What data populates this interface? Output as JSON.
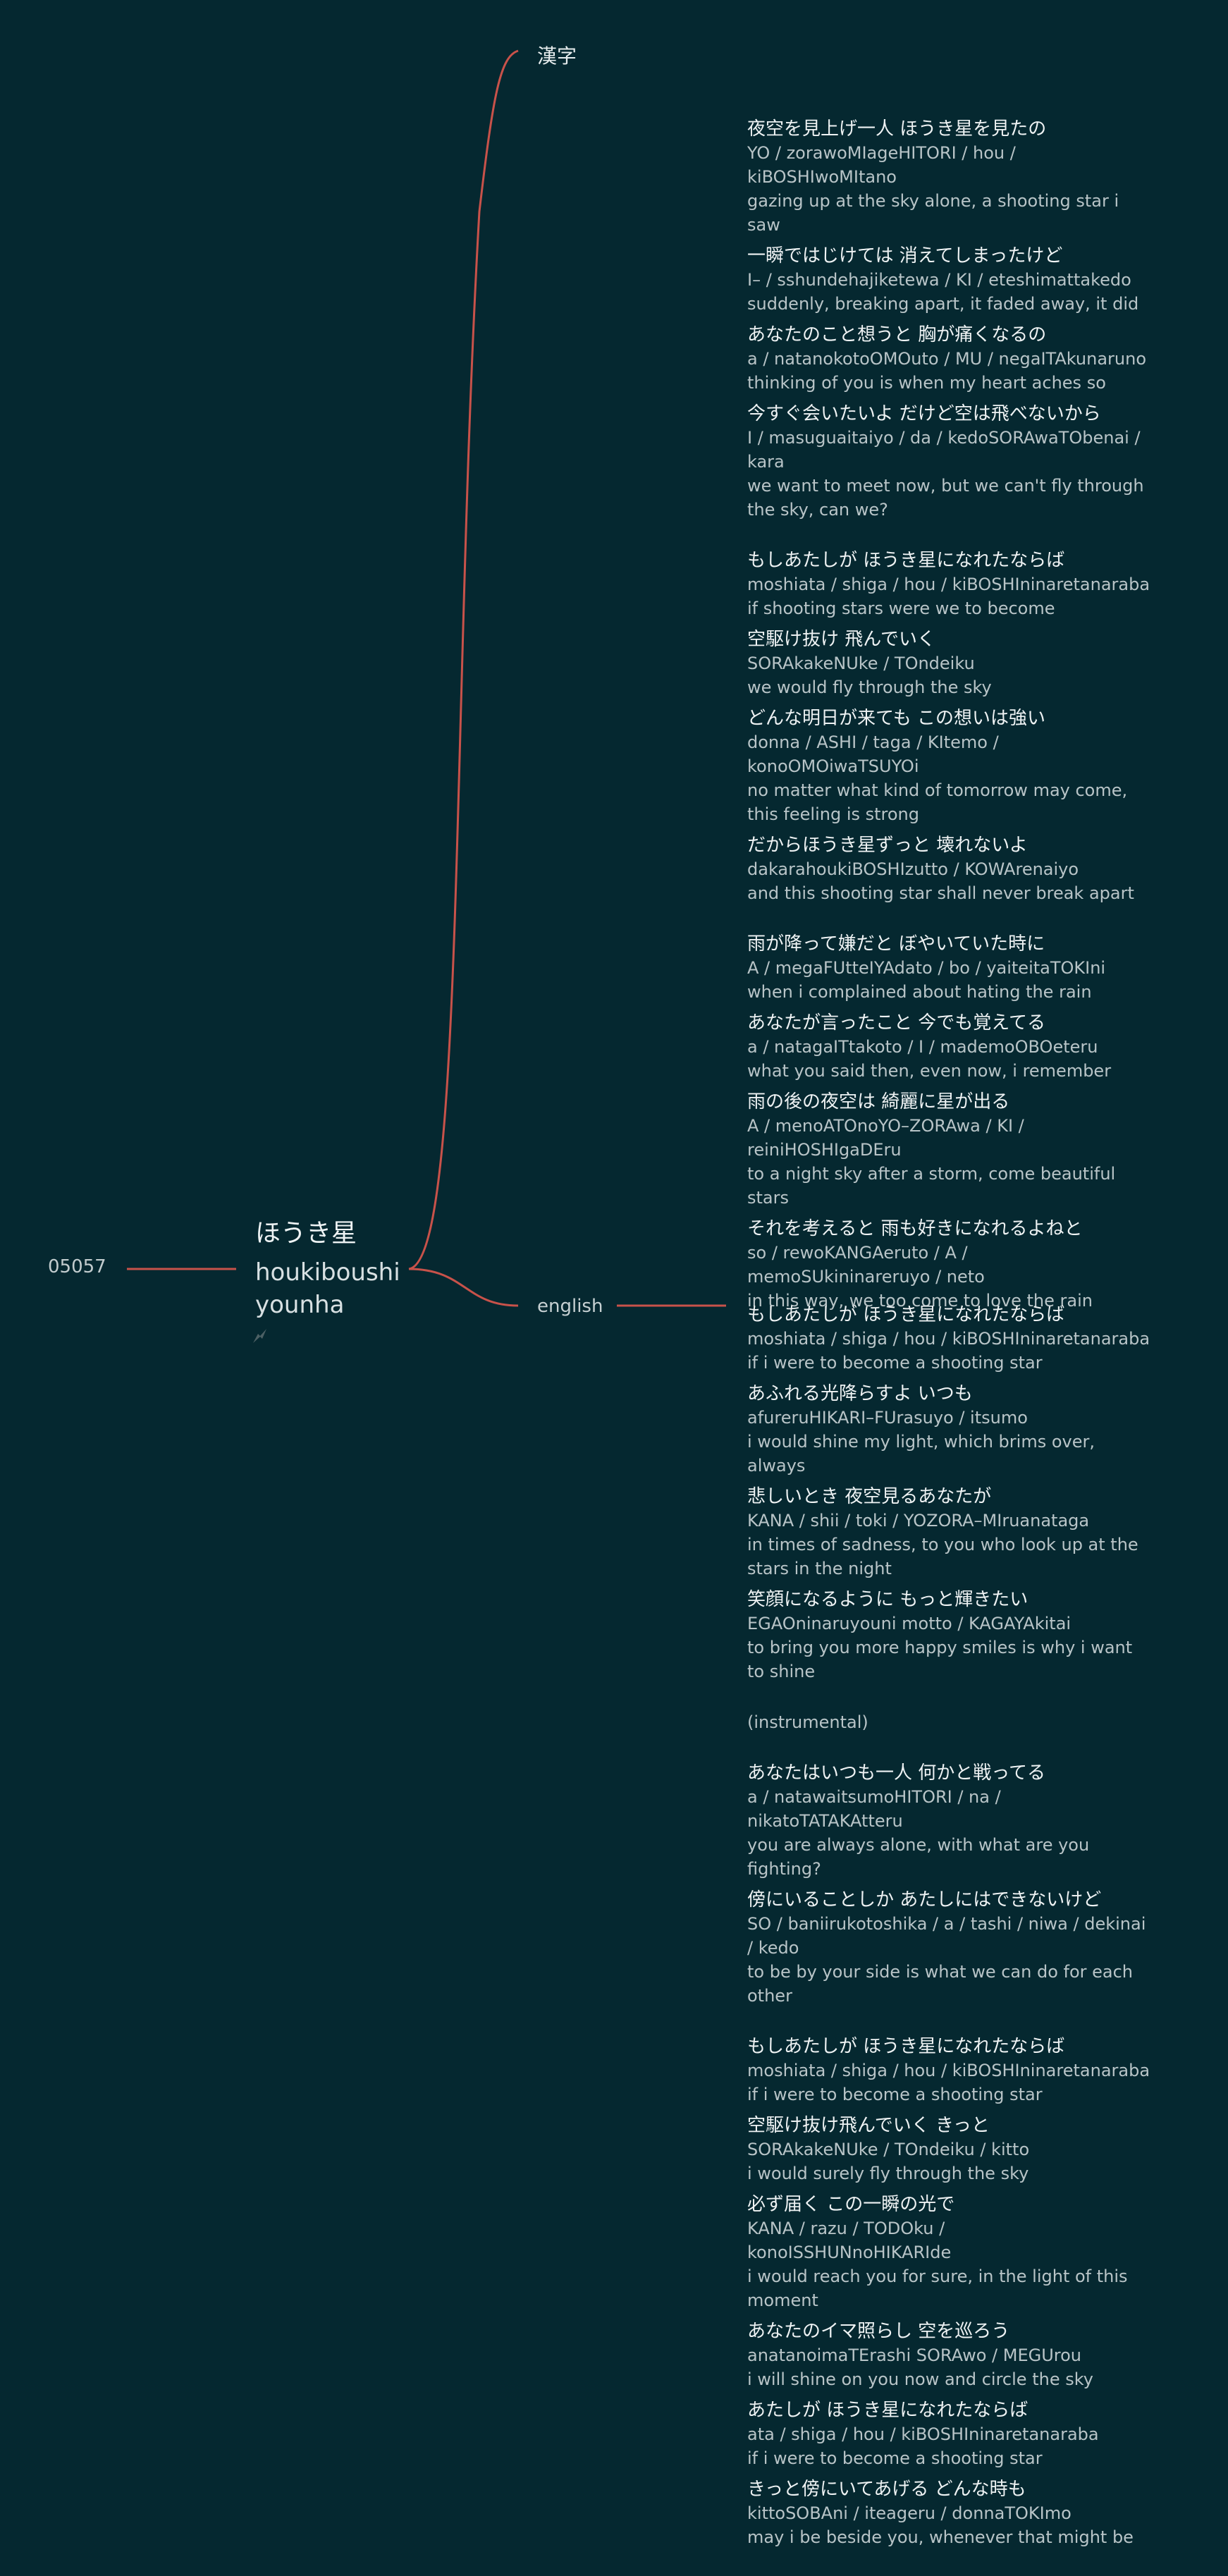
{
  "root": {
    "id": "05057",
    "title": "ほうき星",
    "romaji": "houkiboushi",
    "artist": "younha",
    "icon": "link-arrow-icon"
  },
  "branches": {
    "kanji_label": "漢字",
    "english_label": "english"
  },
  "colors": {
    "background": "#052830",
    "connector": "#c8524a",
    "link_icon": "#4c6064"
  },
  "lyrics_kanji": [
    [
      {
        "jp": "夜空を見上げ一人 ほうき星を見たの",
        "romaji": "YO / zorawoMIageHITORI / hou / kiBOSHIwoMItano",
        "en": "gazing up at the sky alone, a shooting star i saw"
      },
      {
        "jp": "一瞬ではじけては 消えてしまったけど",
        "romaji": "I– / sshundehajiketewa / KI / eteshimattakedo",
        "en": "suddenly, breaking apart, it faded away, it did"
      },
      {
        "jp": "あなたのこと想うと 胸が痛くなるの",
        "romaji": "a / natanokotoOMOuto / MU / negaITAkunaruno",
        "en": "thinking of you is when my heart aches so"
      },
      {
        "jp": "今すぐ会いたいよ だけど空は飛べないから",
        "romaji": "I / masuguaitaiyo / da / kedoSORAwaTObenai / kara",
        "en": "we want to meet now, but we can't fly through the sky, can we?"
      }
    ],
    [
      {
        "jp": "もしあたしが ほうき星になれたならば",
        "romaji": "moshiata / shiga / hou / kiBOSHIninaretanaraba",
        "en": "if shooting stars were we to become"
      },
      {
        "jp": "空駆け抜け 飛んでいく",
        "romaji": "SORAkakeNUke / TOndeiku",
        "en": "we would fly through the sky"
      },
      {
        "jp": "どんな明日が来ても この想いは強い",
        "romaji": "donna / ASHI / taga / KItemo / konoOMOiwaTSUYOi",
        "en": "no matter what kind of tomorrow may come, this feeling is strong"
      },
      {
        "jp": "だからほうき星ずっと 壊れないよ",
        "romaji": "dakarahoukiBOSHIzutto / KOWArenaiyo",
        "en": "and this shooting star shall never break apart"
      }
    ],
    [
      {
        "jp": "雨が降って嫌だと ぼやいていた時に",
        "romaji": "A / megaFUtteIYAdato / bo / yaiteitaTOKIni",
        "en": "when i complained about hating the rain"
      },
      {
        "jp": "あなたが言ったこと 今でも覚えてる",
        "romaji": "a / natagaITtakoto / I / mademoOBOeteru",
        "en": "what you said then, even now, i remember"
      },
      {
        "jp": "雨の後の夜空は 綺麗に星が出る",
        "romaji": "A / menoATOnoYO–ZORAwa / KI / reiniHOSHIgaDEru",
        "en": "to a night sky after a storm, come beautiful stars"
      },
      {
        "jp": "それを考えると 雨も好きになれるよねと",
        "romaji": "so / rewoKANGAeruto / A / memoSUkininareruyo / neto",
        "en": "in this way, we too come to love the rain"
      }
    ]
  ],
  "lyrics_english": [
    [
      {
        "jp": "もしあたしが ほうき星になれたならば",
        "romaji": "moshiata / shiga / hou / kiBOSHIninaretanaraba",
        "en": "if i were to become a shooting star"
      },
      {
        "jp": "あふれる光降らすよ いつも",
        "romaji": "afureruHIKARI–FUrasuyo / itsumo",
        "en": "i would shine my light, which brims over, always"
      },
      {
        "jp": "悲しいとき 夜空見るあなたが",
        "romaji": "KANA / shii / toki / YOZORA–MIruanataga",
        "en": "in times of sadness, to you who look up at the stars in the night"
      },
      {
        "jp": "笑顔になるように もっと輝きたい",
        "romaji": "EGAOninaruyouni motto / KAGAYAkitai",
        "en": "to bring you more happy smiles is why i want to shine"
      }
    ],
    [
      {
        "jp": "あなたはいつも一人 何かと戦ってる",
        "romaji": "a / natawaitsumoHITORI / na / nikatoTATAKAtteru",
        "en": "you are always alone, with what are you fighting?"
      },
      {
        "jp": "傍にいることしか あたしにはできないけど",
        "romaji": "SO / baniirukotoshika / a / tashi / niwa / dekinai / kedo",
        "en": "to be by your side is what we can do for each other"
      }
    ],
    [
      {
        "jp": "もしあたしが ほうき星になれたならば",
        "romaji": "moshiata / shiga / hou / kiBOSHIninaretanaraba",
        "en": "if i were to become a shooting star"
      },
      {
        "jp": "空駆け抜け飛んでいく きっと",
        "romaji": "SORAkakeNUke / TOndeiku / kitto",
        "en": "i would surely fly through the sky"
      },
      {
        "jp": "必ず届く この一瞬の光で",
        "romaji": "KANA / razu / TODOku / konoISSHUNnoHIKARIde",
        "en": "i would reach you for sure, in the light of this moment"
      },
      {
        "jp": "あなたのイマ照らし 空を巡ろう",
        "romaji": "anatanoimaTErashi SORAwo / MEGUrou",
        "en": "i will shine on you now and circle the sky"
      },
      {
        "jp": "あたしが ほうき星になれたならば",
        "romaji": "ata / shiga / hou / kiBOSHIninaretanaraba",
        "en": "if i were to become a shooting star"
      },
      {
        "jp": "きっと傍にいてあげる どんな時も",
        "romaji": "kittoSOBAni / iteageru / donnaTOKImo",
        "en": "may i be beside you, whenever that might be"
      }
    ]
  ],
  "instrumental_note": "(instrumental)"
}
